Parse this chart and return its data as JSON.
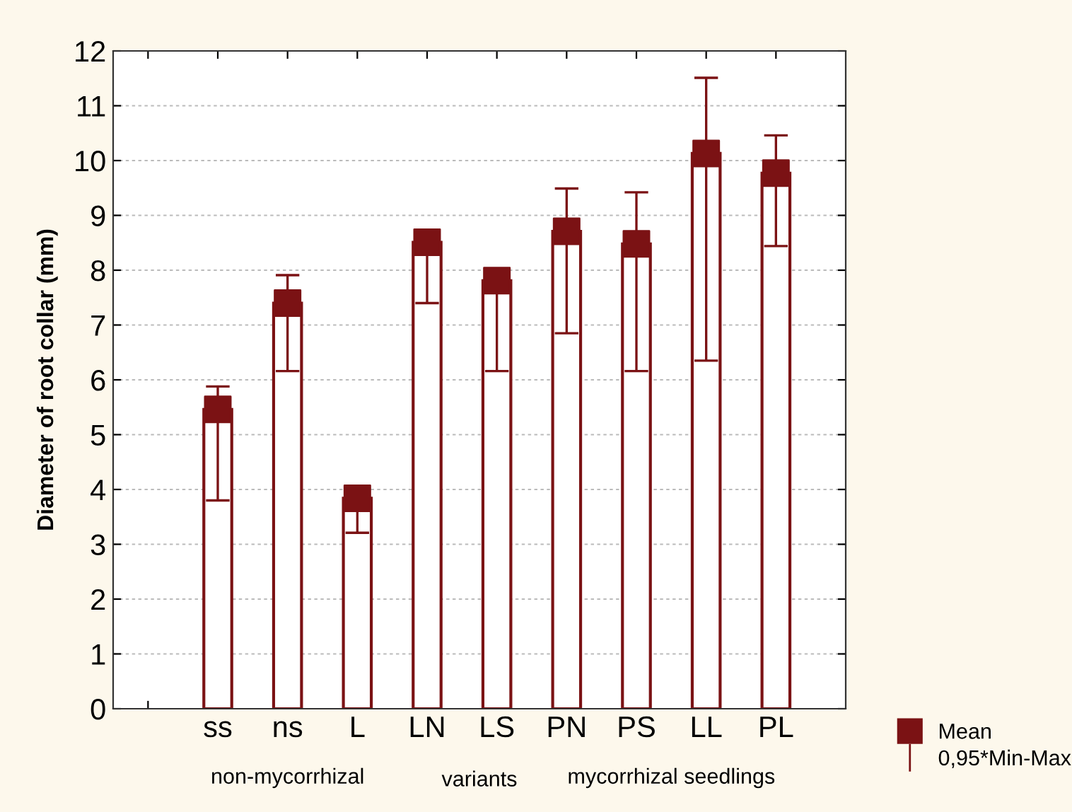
{
  "chart_data": {
    "type": "bar",
    "ylabel": "Diameter of root collar (mm)",
    "xlabel": "variants",
    "categories": [
      "ss",
      "ns",
      "L",
      "LN",
      "LS",
      "PN",
      "PS",
      "LL",
      "PL"
    ],
    "series": [
      {
        "color": "#7b1214",
        "values": [
          5.46,
          7.4,
          3.84,
          8.51,
          7.81,
          8.71,
          8.48,
          10.13,
          9.77
        ],
        "errors": [
          [
            3.8,
            5.88
          ],
          [
            6.16,
            7.91
          ],
          [
            3.21,
            3.84
          ],
          [
            7.4,
            8.51
          ],
          [
            6.16,
            7.81
          ],
          [
            6.85,
            9.49
          ],
          [
            6.16,
            9.42
          ],
          [
            6.35,
            11.51
          ],
          [
            8.44,
            10.46
          ]
        ]
      },
      {
        "type": "scatter",
        "name": "Mean",
        "color": "#7b1214",
        "marker": "square",
        "values": [
          5.46,
          7.4,
          3.84,
          8.51,
          7.81,
          8.71,
          8.48,
          10.13,
          9.77
        ]
      }
    ],
    "annotations": [
      "non-mycorrhizal",
      "mycorrhizal seedlings",
      "0,95*Min-Max"
    ],
    "ylim": [
      0,
      12
    ],
    "yticks": [
      0,
      1,
      2,
      3,
      4,
      5,
      6,
      7,
      8,
      9,
      10,
      11,
      12
    ],
    "grid": "y",
    "legend": "bottom right"
  }
}
